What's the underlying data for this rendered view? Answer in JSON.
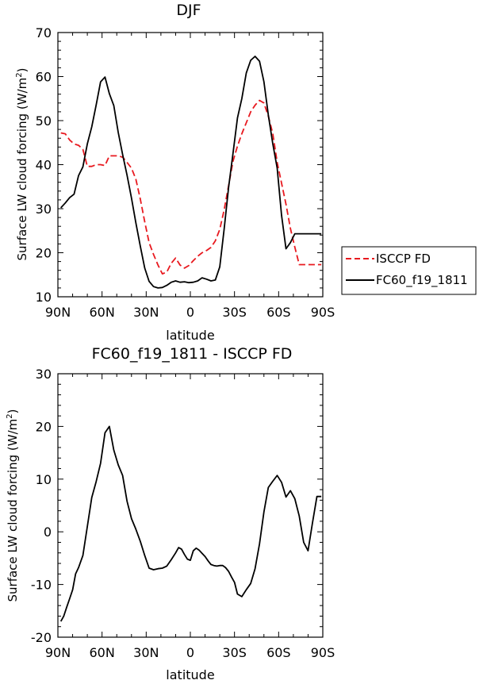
{
  "chart_data": [
    {
      "type": "line",
      "title": "DJF",
      "xlabel": "latitude",
      "ylabel": "Surface LW cloud forcing (W/m",
      "ylabel_sup": "2",
      "ylabel_end": ")",
      "xlim": [
        -90,
        90
      ],
      "ylim": [
        10,
        70
      ],
      "yticks": [
        10,
        20,
        30,
        40,
        50,
        60,
        70
      ],
      "xticks": [
        -90,
        -60,
        -30,
        0,
        30,
        60,
        90
      ],
      "xticklabels": [
        "90N",
        "60N",
        "30N",
        "0",
        "30S",
        "60S",
        "90S"
      ],
      "legend_position": "right",
      "series": [
        {
          "name": "ISCCP FD",
          "color": "#e8191f",
          "dash": "dashed",
          "x": [
            -88,
            -85,
            -82,
            -79,
            -76,
            -73,
            -70,
            -67,
            -64,
            -61,
            -58,
            -55,
            -52,
            -49,
            -46,
            -43,
            -40,
            -37,
            -34,
            -31,
            -28,
            -25,
            -22,
            -19,
            -16,
            -13,
            -10,
            -7,
            -4,
            -1,
            2,
            5,
            8,
            11,
            14,
            17,
            20,
            23,
            26,
            29,
            32,
            35,
            38,
            41,
            44,
            47,
            50,
            53,
            56,
            59,
            62,
            65,
            68,
            71,
            74,
            77,
            80,
            83,
            86,
            89
          ],
          "y": [
            47.2,
            47,
            45.6,
            44.7,
            44.4,
            43.5,
            39.6,
            39.6,
            40,
            40,
            39.8,
            42,
            42,
            42,
            41.7,
            40.5,
            39.2,
            36.7,
            32.2,
            27,
            22.3,
            19.6,
            17.2,
            15.2,
            15.6,
            17.6,
            18.8,
            17.2,
            16.5,
            17.1,
            18.2,
            19.2,
            20,
            20.5,
            21.2,
            22.7,
            25.3,
            29.8,
            35.2,
            40.8,
            44.2,
            47,
            49.5,
            52,
            53.5,
            54.6,
            54,
            51,
            47.1,
            40.5,
            35.8,
            31,
            25.5,
            21.3,
            17.3,
            17.3,
            17.3,
            17.3,
            17.3,
            17.3
          ]
        },
        {
          "name": "FC60_f19_1811",
          "color": "#000000",
          "dash": "solid",
          "x": [
            -88,
            -85,
            -82,
            -79,
            -76,
            -73,
            -70,
            -67,
            -64,
            -61,
            -58,
            -55,
            -52,
            -49,
            -46,
            -43,
            -40,
            -37,
            -34,
            -31,
            -28,
            -25,
            -22,
            -19,
            -16,
            -13,
            -10,
            -7,
            -4,
            -1,
            2,
            5,
            8,
            11,
            14,
            17,
            20,
            23,
            26,
            29,
            32,
            35,
            38,
            41,
            44,
            47,
            50,
            53,
            56,
            59,
            62,
            65,
            68,
            71,
            74,
            77,
            80,
            83,
            86,
            89
          ],
          "y": [
            30.2,
            31.3,
            32.5,
            33.3,
            37.5,
            39.5,
            44.7,
            48.6,
            53.5,
            58.8,
            59.9,
            56.1,
            53.4,
            47.3,
            42.3,
            37.6,
            32.4,
            26.8,
            21.5,
            16.5,
            13.5,
            12.3,
            12,
            12.1,
            12.6,
            13.3,
            13.6,
            13.3,
            13.4,
            13.2,
            13.3,
            13.6,
            14.3,
            14,
            13.6,
            13.8,
            16.8,
            25.5,
            34.8,
            42.6,
            50.6,
            55,
            60.8,
            63.7,
            64.6,
            63.5,
            58.8,
            51.3,
            44.8,
            39.2,
            28.5,
            20.9,
            22.3,
            24.3,
            24.3,
            24.3,
            24.3,
            24.3,
            24.3,
            24.3
          ]
        }
      ]
    },
    {
      "type": "line",
      "title": "FC60_f19_1811 - ISCCP FD",
      "xlabel": "latitude",
      "ylabel": "Surface LW cloud forcing (W/m",
      "ylabel_sup": "2",
      "ylabel_end": ")",
      "xlim": [
        -90,
        90
      ],
      "ylim": [
        -20,
        30
      ],
      "yticks": [
        -20,
        -10,
        0,
        10,
        20,
        30
      ],
      "xticks": [
        -90,
        -60,
        -30,
        0,
        30,
        60,
        90
      ],
      "xticklabels": [
        "90N",
        "60N",
        "30N",
        "0",
        "30S",
        "60S",
        "90S"
      ],
      "series": [
        {
          "color": "#000000",
          "dash": "solid",
          "x": [
            -88,
            -86,
            -84,
            -82,
            -80,
            -78,
            -76,
            -73,
            -70,
            -67,
            -64,
            -61,
            -58,
            -55,
            -52,
            -49,
            -46,
            -43,
            -40,
            -37,
            -34,
            -31,
            -28,
            -25,
            -22,
            -19,
            -16,
            -13,
            -10,
            -8,
            -6,
            -4,
            -2,
            0,
            2,
            4,
            6,
            8,
            10,
            12,
            14,
            16,
            18,
            20,
            22,
            24,
            26,
            28,
            30,
            32,
            35,
            38,
            41,
            44,
            47,
            50,
            53,
            56,
            59,
            62,
            65,
            68,
            71,
            74,
            77,
            80,
            83,
            86,
            89
          ],
          "y": [
            -17,
            -16,
            -14.3,
            -12.7,
            -11,
            -8,
            -6.8,
            -4.5,
            1,
            6.5,
            9.5,
            13,
            18.8,
            20,
            15.5,
            12.7,
            10.7,
            5.8,
            2.5,
            0.5,
            -1.8,
            -4.5,
            -6.9,
            -7.2,
            -7,
            -6.9,
            -6.5,
            -5.3,
            -4,
            -3,
            -3.3,
            -4.3,
            -5.2,
            -5.4,
            -3.6,
            -3.1,
            -3.5,
            -4.1,
            -4.7,
            -5.5,
            -6.2,
            -6.4,
            -6.5,
            -6.4,
            -6.4,
            -6.8,
            -7.5,
            -8.6,
            -9.6,
            -11.8,
            -12.3,
            -11,
            -9.8,
            -7,
            -2.3,
            3.8,
            8.4,
            9.6,
            10.7,
            9.4,
            6.6,
            7.8,
            6.3,
            3,
            -2,
            -3.6,
            1.7,
            6.7,
            6.7
          ]
        }
      ]
    }
  ]
}
